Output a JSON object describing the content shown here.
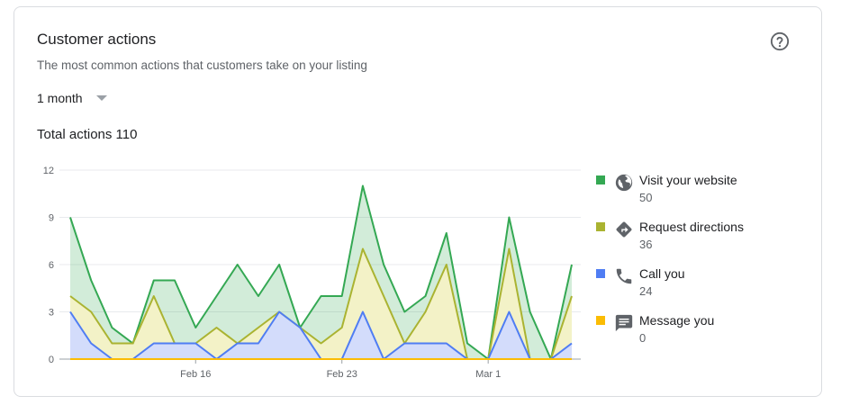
{
  "card": {
    "title": "Customer actions",
    "subtitle": "The most common actions that customers take on your listing",
    "range_label": "1 month",
    "total_label": "Total actions 110"
  },
  "legend": [
    {
      "name": "Visit your website",
      "value": "50",
      "color": "#34a853",
      "icon": "globe-icon"
    },
    {
      "name": "Request directions",
      "value": "36",
      "color": "#aab331",
      "icon": "directions-icon"
    },
    {
      "name": "Call you",
      "value": "24",
      "color": "#4f7df3",
      "icon": "phone-icon"
    },
    {
      "name": "Message you",
      "value": "0",
      "color": "#fbbc04",
      "icon": "message-icon"
    }
  ],
  "chart_data": {
    "type": "area",
    "x_tick_labels": [
      "Feb 16",
      "Feb 23",
      "Mar 1"
    ],
    "x_tick_index": [
      6,
      13,
      20
    ],
    "y_ticks": [
      0,
      3,
      6,
      9,
      12
    ],
    "ylim": [
      0,
      12
    ],
    "grid": true,
    "legend_position": "right",
    "series": [
      {
        "name": "Visit your website",
        "color": "#34a853",
        "values": [
          9,
          5,
          2,
          1,
          5,
          5,
          2,
          4,
          6,
          4,
          6,
          2,
          4,
          4,
          11,
          6,
          3,
          4,
          8,
          1,
          0,
          9,
          3,
          0,
          6
        ]
      },
      {
        "name": "Request directions",
        "color": "#aab331",
        "values": [
          4,
          3,
          1,
          1,
          4,
          1,
          1,
          2,
          1,
          2,
          3,
          2,
          1,
          2,
          7,
          4,
          1,
          3,
          6,
          0,
          0,
          7,
          0,
          0,
          4
        ]
      },
      {
        "name": "Call you",
        "color": "#4f7df3",
        "values": [
          3,
          1,
          0,
          0,
          1,
          1,
          1,
          0,
          1,
          1,
          3,
          2,
          0,
          0,
          3,
          0,
          1,
          1,
          1,
          0,
          0,
          3,
          0,
          0,
          1
        ]
      },
      {
        "name": "Message you",
        "color": "#fbbc04",
        "values": [
          0,
          0,
          0,
          0,
          0,
          0,
          0,
          0,
          0,
          0,
          0,
          0,
          0,
          0,
          0,
          0,
          0,
          0,
          0,
          0,
          0,
          0,
          0,
          0,
          0
        ]
      }
    ]
  }
}
